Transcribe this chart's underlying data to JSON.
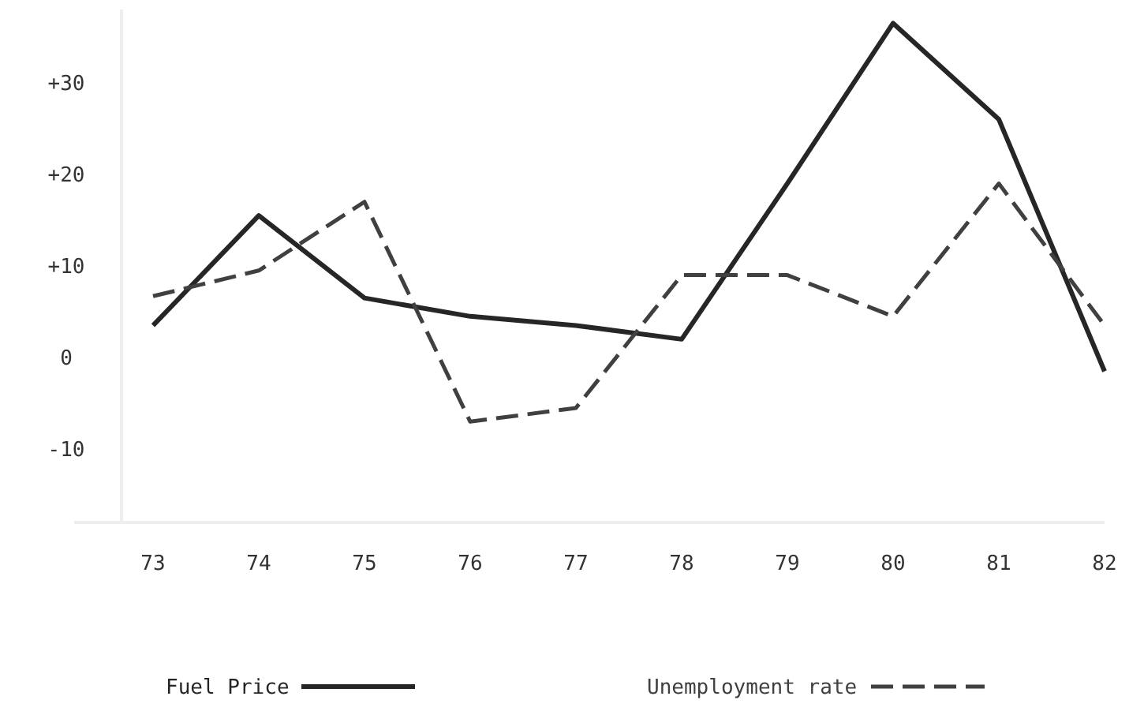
{
  "chart_data": {
    "type": "line",
    "categories": [
      "73",
      "74",
      "75",
      "76",
      "77",
      "78",
      "79",
      "80",
      "81",
      "82"
    ],
    "series": [
      {
        "name": "Fuel Price",
        "color": "#262626",
        "line_style": "solid",
        "values": [
          3.5,
          15.5,
          6.5,
          4.5,
          3.5,
          2,
          19,
          36.5,
          26,
          -1.5
        ]
      },
      {
        "name": "Unemployment rate",
        "color": "#404040",
        "line_style": "dashed",
        "values": [
          6.7,
          9.5,
          17,
          -7,
          -5.5,
          9,
          9,
          4.5,
          19,
          3.5
        ]
      }
    ],
    "ylim": [
      -18,
      38
    ],
    "yticks": [
      {
        "value": 30,
        "label": "+30"
      },
      {
        "value": 20,
        "label": "+20"
      },
      {
        "value": 10,
        "label": "+10"
      },
      0,
      -10
    ],
    "grid": false,
    "marker": "none",
    "legend": "bottom"
  }
}
